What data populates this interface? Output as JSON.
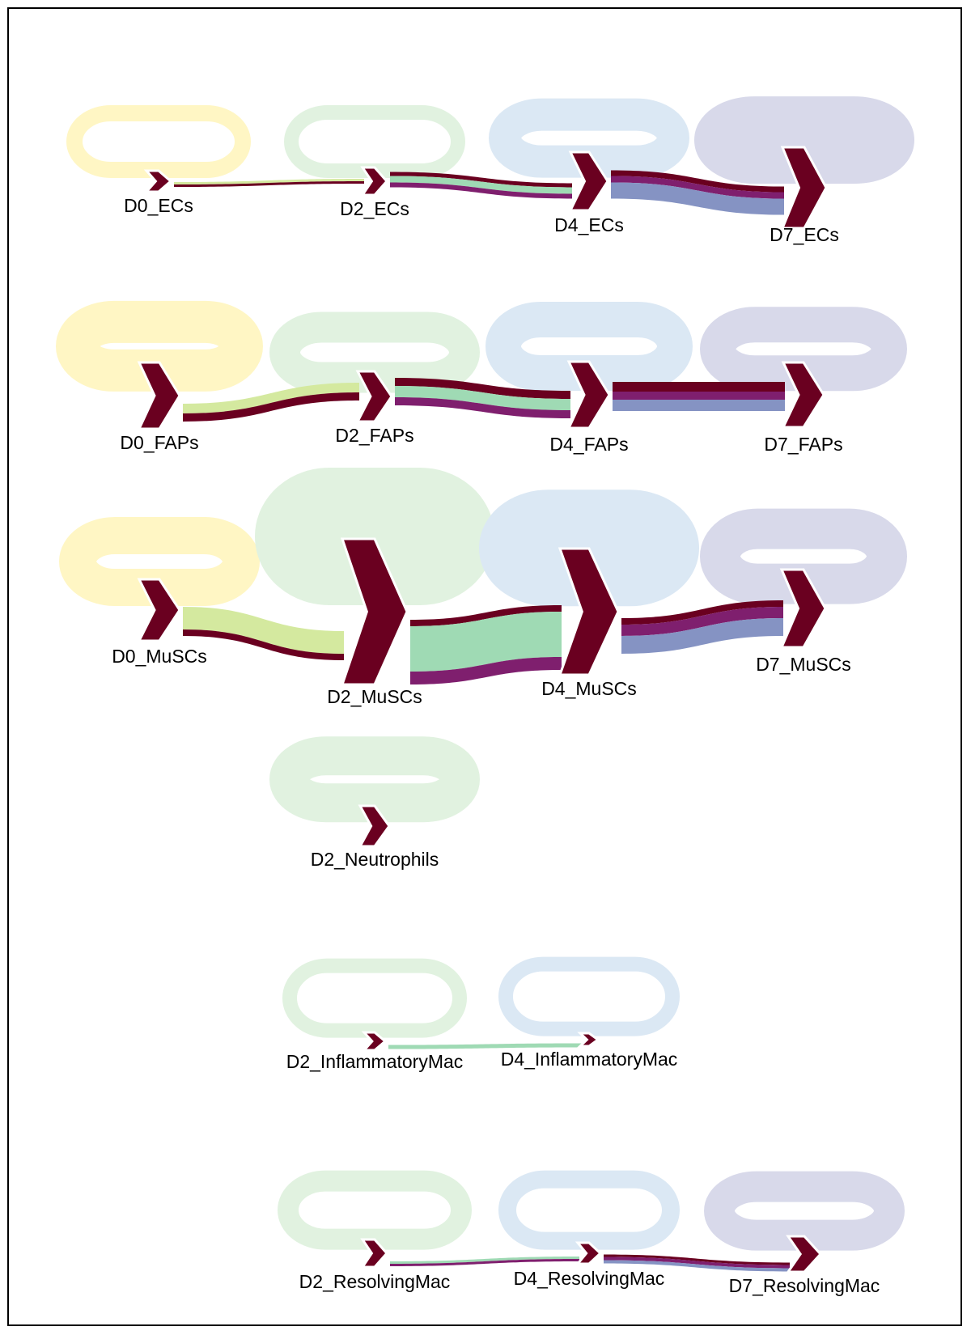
{
  "colors": {
    "node": "#6a0020",
    "loop": {
      "D0": "#fff6c4",
      "D2": "#e1f2e0",
      "D4": "#dbe8f4",
      "D7": "#d8d9ea"
    },
    "flow": {
      "D0": "#d4e99f",
      "D2": "#9fdab4",
      "D4": "#7f1f6e",
      "D7": "#8593c3",
      "dark": "#6a0020"
    }
  },
  "chart_data": {
    "type": "sankey",
    "nodes": [
      {
        "id": "D0_ECs",
        "label": "D0_ECs"
      },
      {
        "id": "D2_ECs",
        "label": "D2_ECs"
      },
      {
        "id": "D4_ECs",
        "label": "D4_ECs"
      },
      {
        "id": "D7_ECs",
        "label": "D7_ECs"
      },
      {
        "id": "D0_FAPs",
        "label": "D0_FAPs"
      },
      {
        "id": "D2_FAPs",
        "label": "D2_FAPs"
      },
      {
        "id": "D4_FAPs",
        "label": "D4_FAPs"
      },
      {
        "id": "D7_FAPs",
        "label": "D7_FAPs"
      },
      {
        "id": "D0_MuSCs",
        "label": "D0_MuSCs"
      },
      {
        "id": "D2_MuSCs",
        "label": "D2_MuSCs"
      },
      {
        "id": "D4_MuSCs",
        "label": "D4_MuSCs"
      },
      {
        "id": "D7_MuSCs",
        "label": "D7_MuSCs"
      },
      {
        "id": "D2_Neutrophils",
        "label": "D2_Neutrophils"
      },
      {
        "id": "D2_InflammatoryMac",
        "label": "D2_InflammatoryMac"
      },
      {
        "id": "D4_InflammatoryMac",
        "label": "D4_InflammatoryMac"
      },
      {
        "id": "D2_ResolvingMac",
        "label": "D2_ResolvingMac"
      },
      {
        "id": "D4_ResolvingMac",
        "label": "D4_ResolvingMac"
      },
      {
        "id": "D7_ResolvingMac",
        "label": "D7_ResolvingMac"
      }
    ],
    "links": [
      {
        "source": "D0_ECs",
        "target": "D2_ECs",
        "value": 1
      },
      {
        "source": "D2_ECs",
        "target": "D4_ECs",
        "value": 2
      },
      {
        "source": "D4_ECs",
        "target": "D7_ECs",
        "value": 3
      },
      {
        "source": "D0_FAPs",
        "target": "D2_FAPs",
        "value": 3
      },
      {
        "source": "D2_FAPs",
        "target": "D4_FAPs",
        "value": 3
      },
      {
        "source": "D4_FAPs",
        "target": "D7_FAPs",
        "value": 4
      },
      {
        "source": "D0_MuSCs",
        "target": "D2_MuSCs",
        "value": 4
      },
      {
        "source": "D2_MuSCs",
        "target": "D4_MuSCs",
        "value": 8
      },
      {
        "source": "D4_MuSCs",
        "target": "D7_MuSCs",
        "value": 6
      },
      {
        "source": "D2_InflammatoryMac",
        "target": "D4_InflammatoryMac",
        "value": 0.5
      },
      {
        "source": "D2_ResolvingMac",
        "target": "D4_ResolvingMac",
        "value": 0.5
      },
      {
        "source": "D4_ResolvingMac",
        "target": "D7_ResolvingMac",
        "value": 1
      }
    ]
  }
}
